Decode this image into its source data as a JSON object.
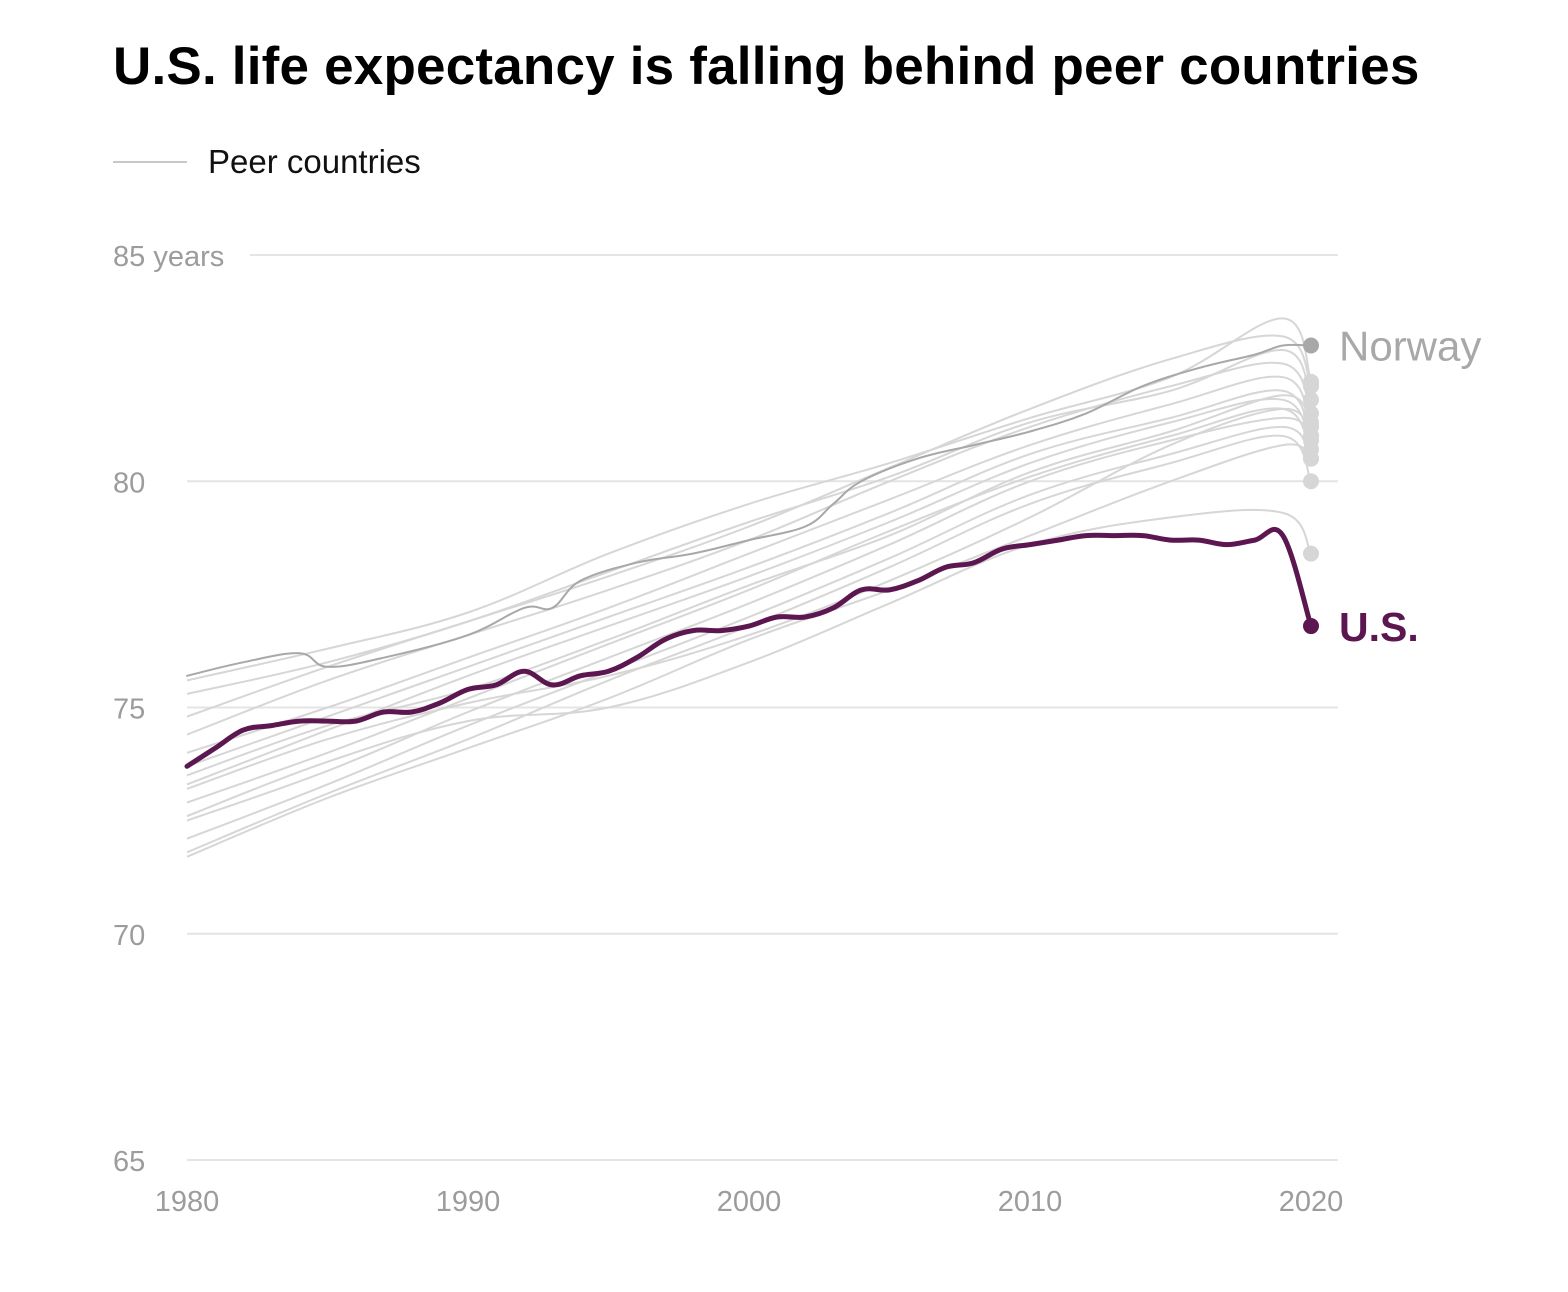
{
  "title": "U.S. life expectancy is falling behind peer countries",
  "legend": {
    "label": "Peer countries"
  },
  "colors": {
    "peer": "#d6d6d6",
    "norway": "#a8a8a8",
    "us": "#5c1650",
    "grid": "#e4e4e4",
    "tick": "#9c9c9c"
  },
  "chart_data": {
    "type": "line",
    "title": "U.S. life expectancy is falling behind peer countries",
    "xlabel": "",
    "ylabel": "",
    "xlim": [
      1980,
      2020
    ],
    "ylim": [
      65,
      85
    ],
    "x_ticks": [
      {
        "value": 1980,
        "label": "1980"
      },
      {
        "value": 1990,
        "label": "1990"
      },
      {
        "value": 2000,
        "label": "2000"
      },
      {
        "value": 2010,
        "label": "2010"
      },
      {
        "value": 2020,
        "label": "2020"
      }
    ],
    "y_ticks": [
      {
        "value": 85,
        "label": "85 years"
      },
      {
        "value": 80,
        "label": "80"
      },
      {
        "value": 75,
        "label": "75"
      },
      {
        "value": 70,
        "label": "70"
      },
      {
        "value": 65,
        "label": "65"
      }
    ],
    "grid": true,
    "legend_position": "top-left",
    "highlighted": [
      {
        "label": "Norway",
        "x": [
          1980,
          1982,
          1984,
          1985,
          1987,
          1990,
          1992,
          1993,
          1994,
          1996,
          1998,
          2000,
          2002,
          2003,
          2004,
          2006,
          2008,
          2010,
          2012,
          2014,
          2016,
          2018,
          2019,
          2020
        ],
        "y": [
          75.7,
          76.0,
          76.2,
          75.9,
          76.1,
          76.6,
          77.2,
          77.2,
          77.8,
          78.2,
          78.4,
          78.7,
          79.0,
          79.5,
          80.0,
          80.5,
          80.8,
          81.1,
          81.5,
          82.1,
          82.5,
          82.8,
          83.0,
          83.0
        ]
      },
      {
        "label": "U.S.",
        "x": [
          1980,
          1981,
          1982,
          1983,
          1984,
          1985,
          1986,
          1987,
          1988,
          1989,
          1990,
          1991,
          1992,
          1993,
          1994,
          1995,
          1996,
          1997,
          1998,
          1999,
          2000,
          2001,
          2002,
          2003,
          2004,
          2005,
          2006,
          2007,
          2008,
          2009,
          2010,
          2011,
          2012,
          2013,
          2014,
          2015,
          2016,
          2017,
          2018,
          2019,
          2020
        ],
        "y": [
          73.7,
          74.1,
          74.5,
          74.6,
          74.7,
          74.7,
          74.7,
          74.9,
          74.9,
          75.1,
          75.4,
          75.5,
          75.8,
          75.5,
          75.7,
          75.8,
          76.1,
          76.5,
          76.7,
          76.7,
          76.8,
          77.0,
          77.0,
          77.2,
          77.6,
          77.6,
          77.8,
          78.1,
          78.2,
          78.5,
          78.6,
          78.7,
          78.8,
          78.8,
          78.8,
          78.7,
          78.7,
          78.6,
          78.7,
          78.8,
          76.8
        ]
      }
    ],
    "peers": [
      {
        "x": [
          1980,
          1985,
          1990,
          1995,
          2000,
          2005,
          2010,
          2015,
          2019,
          2020
        ],
        "y": [
          75.6,
          76.3,
          77.1,
          78.4,
          79.5,
          80.4,
          81.4,
          82.3,
          83.6,
          82.2
        ]
      },
      {
        "x": [
          1980,
          1985,
          1990,
          1995,
          2000,
          2005,
          2010,
          2015,
          2019,
          2020
        ],
        "y": [
          75.3,
          76.0,
          76.9,
          78.0,
          79.1,
          80.1,
          81.3,
          82.0,
          82.9,
          81.8
        ]
      },
      {
        "x": [
          1980,
          1985,
          1990,
          1995,
          2000,
          2005,
          2010,
          2015,
          2019,
          2020
        ],
        "y": [
          74.8,
          75.9,
          76.9,
          77.9,
          79.0,
          80.3,
          81.6,
          82.7,
          83.2,
          82.1
        ]
      },
      {
        "x": [
          1980,
          1985,
          1990,
          1995,
          2000,
          2005,
          2010,
          2015,
          2019,
          2020
        ],
        "y": [
          74.4,
          75.6,
          76.6,
          77.6,
          78.7,
          80.0,
          81.2,
          82.1,
          82.6,
          81.5
        ]
      },
      {
        "x": [
          1980,
          1985,
          1990,
          1995,
          2000,
          2005,
          2010,
          2015,
          2019,
          2020
        ],
        "y": [
          74.0,
          75.0,
          76.1,
          77.2,
          78.4,
          79.6,
          80.8,
          81.7,
          82.3,
          81.2
        ]
      },
      {
        "x": [
          1980,
          1985,
          1990,
          1995,
          2000,
          2005,
          2010,
          2015,
          2019,
          2020
        ],
        "y": [
          73.7,
          74.8,
          75.9,
          77.0,
          78.1,
          79.3,
          80.6,
          81.4,
          82.0,
          80.9
        ]
      },
      {
        "x": [
          1980,
          1985,
          1990,
          1995,
          2000,
          2005,
          2010,
          2015,
          2019,
          2020
        ],
        "y": [
          73.3,
          74.5,
          75.7,
          76.8,
          77.9,
          79.1,
          80.4,
          81.3,
          81.8,
          80.7
        ]
      },
      {
        "x": [
          1980,
          1985,
          1990,
          1995,
          2000,
          2005,
          2010,
          2015,
          2019,
          2020
        ],
        "y": [
          72.9,
          74.0,
          75.2,
          76.4,
          77.6,
          78.9,
          80.1,
          81.0,
          81.6,
          80.5
        ]
      },
      {
        "x": [
          1980,
          1985,
          1990,
          1995,
          2000,
          2005,
          2010,
          2015,
          2019,
          2020
        ],
        "y": [
          72.5,
          73.6,
          74.9,
          76.1,
          77.3,
          78.6,
          80.0,
          80.9,
          81.4,
          81.0
        ]
      },
      {
        "x": [
          1980,
          1985,
          1990,
          1995,
          2000,
          2005,
          2010,
          2015,
          2019,
          2020
        ],
        "y": [
          72.1,
          73.3,
          74.6,
          75.8,
          77.0,
          78.3,
          79.7,
          80.6,
          81.2,
          80.5
        ]
      },
      {
        "x": [
          1980,
          1985,
          1990,
          1995,
          2000,
          2005,
          2010,
          2015,
          2019,
          2020
        ],
        "y": [
          71.8,
          73.1,
          74.3,
          75.6,
          76.8,
          78.1,
          79.5,
          80.4,
          81.0,
          80.0
        ]
      },
      {
        "x": [
          1980,
          1985,
          1990,
          1995,
          2000,
          2005,
          2010,
          2015,
          2019,
          2020
        ],
        "y": [
          71.7,
          73.0,
          74.1,
          75.2,
          76.5,
          77.6,
          78.8,
          80.0,
          80.8,
          80.5
        ]
      },
      {
        "x": [
          1980,
          1985,
          1990,
          1995,
          2000,
          2005,
          2010,
          2015,
          2019,
          2020
        ],
        "y": [
          73.2,
          74.3,
          75.1,
          75.7,
          76.6,
          77.8,
          79.2,
          80.8,
          81.6,
          81.0
        ]
      },
      {
        "x": [
          1980,
          1985,
          1990,
          1995,
          2000,
          2005,
          2010,
          2015,
          2019,
          2020
        ],
        "y": [
          72.6,
          73.8,
          74.7,
          75.0,
          76.0,
          77.3,
          78.6,
          79.2,
          79.3,
          78.4
        ]
      },
      {
        "x": [
          1980,
          1985,
          1990,
          1995,
          2000,
          2005,
          2010,
          2015,
          2019,
          2020
        ],
        "y": [
          73.5,
          74.6,
          75.4,
          76.5,
          77.7,
          78.8,
          80.2,
          81.1,
          81.9,
          81.3
        ]
      }
    ]
  }
}
